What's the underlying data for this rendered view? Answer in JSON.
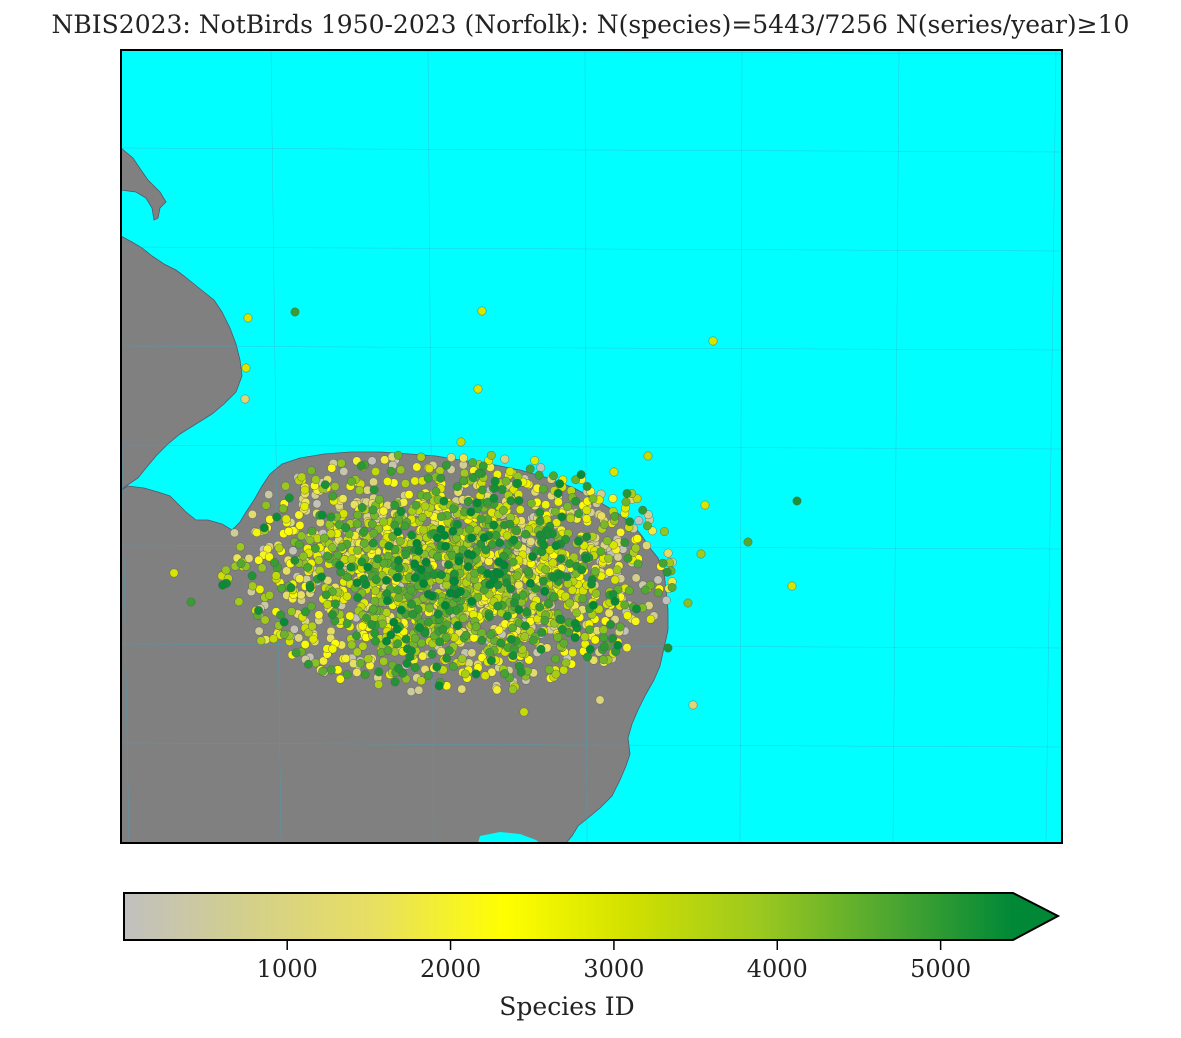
{
  "title": "NBIS2023: NotBirds 1950-2023 (Norfolk): N(species)=5443/7256 N(series/year)≥10",
  "colors": {
    "sea": "#00ffff",
    "land": "#808080",
    "coastline": "#555566",
    "graticule": "#3aa8c8",
    "graticule_land": "#7a6a8a",
    "frame": "#000000"
  },
  "colorbar": {
    "label": "Species ID",
    "min": 1,
    "max": 5443,
    "extend": "max",
    "stops": [
      "#c0c0c0",
      "#d4d08a",
      "#e8e060",
      "#ffff00",
      "#d0e000",
      "#9cc820",
      "#50a830",
      "#008837"
    ],
    "ticks": [
      {
        "value": 1000,
        "label": "1000"
      },
      {
        "value": 2000,
        "label": "2000"
      },
      {
        "value": 3000,
        "label": "3000"
      },
      {
        "value": 4000,
        "label": "4000"
      },
      {
        "value": 5000,
        "label": "5000"
      }
    ]
  }
}
